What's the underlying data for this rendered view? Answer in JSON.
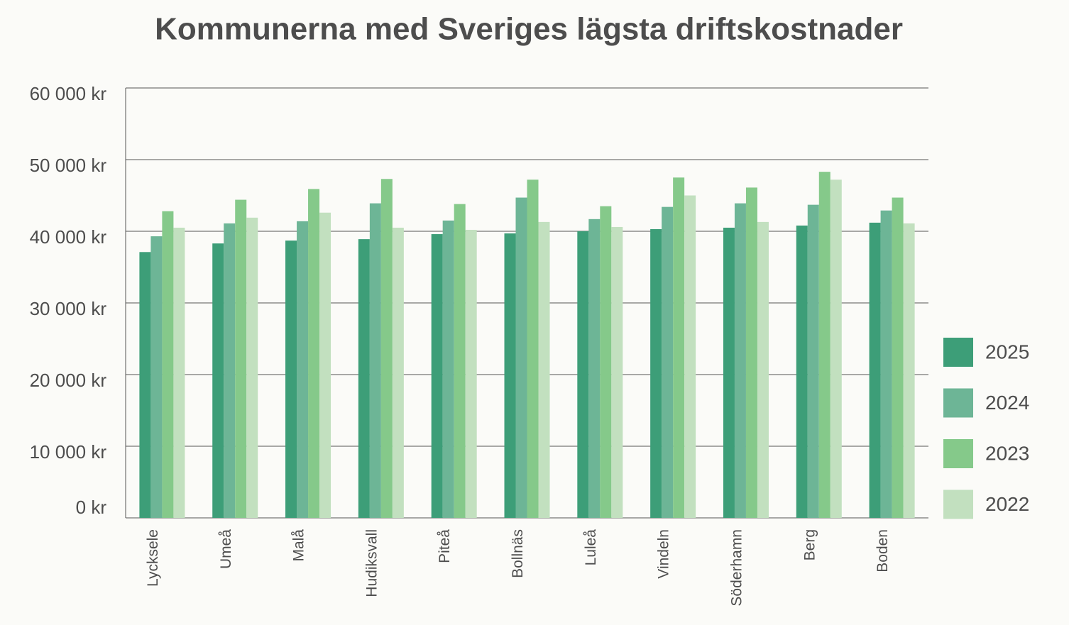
{
  "chart_data": {
    "type": "bar",
    "title": "Kommunerna med Sveriges lägsta driftskostnader",
    "categories": [
      "Lycksele",
      "Umeå",
      "Malå",
      "Hudiksvall",
      "Piteå",
      "Bollnäs",
      "Luleå",
      "Vindeln",
      "Söderhamn",
      "Berg",
      "Boden"
    ],
    "series": [
      {
        "name": "2025",
        "color": "#3d9e78",
        "values": [
          37100,
          38300,
          38700,
          38900,
          39600,
          39700,
          40000,
          40300,
          40500,
          40800,
          41200
        ]
      },
      {
        "name": "2024",
        "color": "#6db596",
        "values": [
          39300,
          41100,
          41400,
          43900,
          41500,
          44700,
          41700,
          43400,
          43900,
          43700,
          42900
        ]
      },
      {
        "name": "2023",
        "color": "#85c98a",
        "values": [
          42800,
          44400,
          45900,
          47300,
          43800,
          47200,
          43500,
          47500,
          46100,
          48300,
          44700
        ]
      },
      {
        "name": "2022",
        "color": "#c2e0bf",
        "values": [
          40500,
          41900,
          42600,
          40500,
          40200,
          41300,
          40600,
          45000,
          41300,
          47200,
          41100
        ]
      }
    ],
    "ylim": [
      0,
      60000
    ],
    "yticks": [
      {
        "value": 0,
        "label": "0 kr"
      },
      {
        "value": 10000,
        "label": "10 000 kr"
      },
      {
        "value": 20000,
        "label": "20 000 kr"
      },
      {
        "value": 30000,
        "label": "30 000 kr"
      },
      {
        "value": 40000,
        "label": "40 000 kr"
      },
      {
        "value": 50000,
        "label": "50 000 kr"
      },
      {
        "value": 60000,
        "label": "60 000 kr"
      }
    ],
    "grid": true,
    "legend": "right"
  }
}
